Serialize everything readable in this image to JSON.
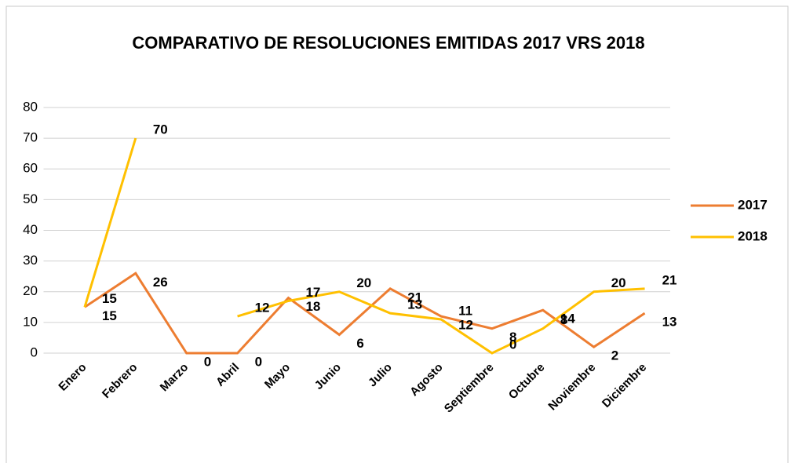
{
  "chart_data": {
    "type": "line",
    "title": "COMPARATIVO DE RESOLUCIONES EMITIDAS 2017 VRS 2018",
    "categories": [
      "Enero",
      "Febrero",
      "Marzo",
      "Abril",
      "Mayo",
      "Junio",
      "Julio",
      "Agosto",
      "Septiembre",
      "Octubre",
      "Noviembre",
      "Diciembre"
    ],
    "series": [
      {
        "name": "2017",
        "color": "#ed7d31",
        "values": [
          15,
          26,
          0,
          0,
          18,
          6,
          21,
          12,
          8,
          14,
          2,
          13
        ]
      },
      {
        "name": "2018",
        "color": "#ffc000",
        "values": [
          15,
          70,
          null,
          12,
          17,
          20,
          13,
          11,
          0,
          8,
          20,
          21
        ]
      }
    ],
    "ylim": [
      0,
      80
    ],
    "yticks": [
      0,
      10,
      20,
      30,
      40,
      50,
      60,
      70,
      80
    ],
    "grid": true,
    "legend": "right"
  }
}
